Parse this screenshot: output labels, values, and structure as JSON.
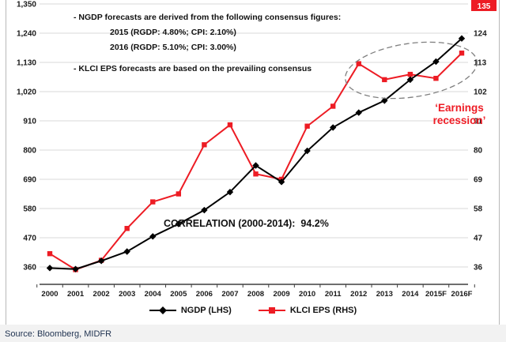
{
  "chart_data": {
    "type": "line",
    "title": "",
    "categories": [
      "2000",
      "2001",
      "2002",
      "2003",
      "2004",
      "2005",
      "2006",
      "2007",
      "2008",
      "2009",
      "2010",
      "2011",
      "2012",
      "2013",
      "2014",
      "2015F",
      "2016F"
    ],
    "series": [
      {
        "name": "NGDP (LHS)",
        "axis": "left",
        "color": "#000000",
        "marker": "diamond",
        "values": [
          356,
          352,
          383,
          418,
          475,
          522,
          574,
          642,
          742,
          680,
          797,
          885,
          941,
          986,
          1065,
          1133,
          1220
        ]
      },
      {
        "name": "KLCI EPS (RHS)",
        "axis": "right",
        "color": "#ed1c24",
        "marker": "square",
        "values": [
          41,
          35,
          38.5,
          50.5,
          60.5,
          63.5,
          82,
          89.5,
          71,
          69,
          89,
          96.5,
          112.5,
          106.5,
          108.5,
          107,
          116.5
        ]
      }
    ],
    "left_axis": {
      "tick_values": [
        360,
        470,
        580,
        690,
        800,
        910,
        1020,
        1130,
        1240,
        1350
      ],
      "tick_labels": [
        "360",
        "470",
        "580",
        "690",
        "800",
        "910",
        "1,020",
        "1,130",
        "1,240",
        "1,350"
      ],
      "min": 292,
      "max": 1350
    },
    "right_axis": {
      "tick_values": [
        36,
        47,
        58,
        69,
        80,
        91,
        102,
        113,
        124,
        135
      ],
      "tick_labels": [
        "36",
        "47",
        "58",
        "69",
        "80",
        "91",
        "102",
        "113",
        "124",
        "135"
      ],
      "min": 29.2,
      "max": 135,
      "highlight_top_value": 135
    },
    "grid": true,
    "legend_position": "bottom",
    "annotations": [
      "NGDP consensus note",
      "correlation label",
      "earnings recession ellipse"
    ]
  },
  "notes": {
    "line1": "- NGDP forecasts are derived from the following consensus figures:",
    "line2": "2015 (RGDP: 4.80%; CPI: 2.10%)",
    "line3": "2016 (RGDP: 5.10%; CPI: 3.00%)",
    "line4": "- KLCI EPS forecasts are based on the prevailing consensus"
  },
  "correlation_label": "CORRELATION (2000-2014):  94.2%",
  "recession_label": {
    "line1": "‘Earnings",
    "line2": "recession’"
  },
  "legend": {
    "series1": "NGDP (LHS)",
    "series2": "KLCI EPS (RHS)"
  },
  "footer": {
    "source": "Source: Bloomberg, MIDFR"
  },
  "colors": {
    "ngdp": "#000000",
    "klci": "#ed1c24",
    "grid": "#d9d9d9",
    "axis": "#3f3f3f",
    "ellipse": "#7f7f7f",
    "recession_text": "#ee1c25",
    "highlight_box": "#ed1c24"
  }
}
